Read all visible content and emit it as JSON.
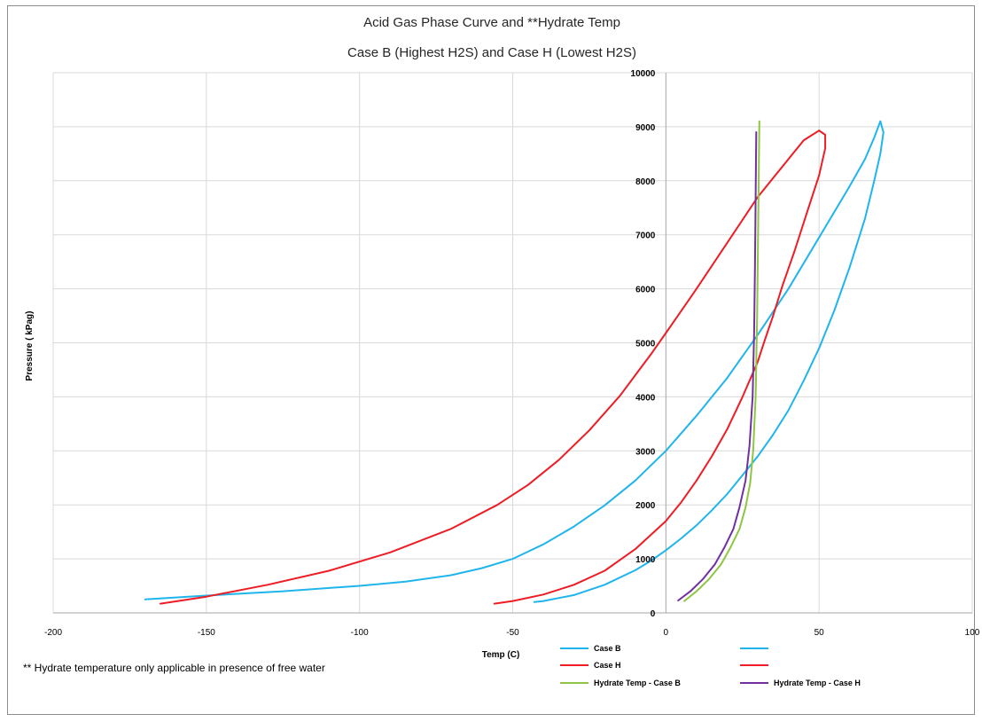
{
  "chart_data": {
    "type": "line",
    "title_line1": "Acid Gas Phase Curve and  **Hydrate Temp",
    "title_line2": "Case B (Highest H2S) and Case H (Lowest H2S)",
    "xlabel": "Temp  (C)",
    "ylabel": "Pressure ( kPag)",
    "xlim": [
      -200,
      100
    ],
    "ylim": [
      0,
      10000
    ],
    "x_ticks": [
      "-200",
      "-150",
      "-100",
      "-50",
      "0",
      "50",
      "100"
    ],
    "y_ticks": [
      "0",
      "1000",
      "2000",
      "3000",
      "4000",
      "5000",
      "6000",
      "7000",
      "8000",
      "9000",
      "10000"
    ],
    "grid": true,
    "legend_position": "bottom",
    "note": "** Hydrate temperature only applicable in presence of free water",
    "series": [
      {
        "name": "Case B",
        "color": "#1fb5ec",
        "x": [
          -170,
          -150,
          -125,
          -100,
          -85,
          -70,
          -60,
          -50,
          -40,
          -30,
          -20,
          -10,
          0,
          10,
          20,
          30,
          40,
          50,
          60,
          65,
          68,
          70
        ],
        "y": [
          250,
          320,
          400,
          500,
          580,
          700,
          830,
          1000,
          1270,
          1600,
          1990,
          2450,
          3000,
          3650,
          4350,
          5150,
          6000,
          6950,
          7900,
          8400,
          8800,
          9100
        ]
      },
      {
        "name": "",
        "color": "#1fb5ec",
        "x": [
          70,
          71,
          70,
          68,
          65,
          60,
          55,
          50,
          45,
          40,
          35,
          30,
          25,
          20,
          15,
          10,
          5,
          0,
          -5,
          -10,
          -20,
          -30,
          -40,
          -43
        ],
        "y": [
          9100,
          8900,
          8500,
          8000,
          7300,
          6400,
          5600,
          4900,
          4300,
          3750,
          3300,
          2900,
          2550,
          2200,
          1900,
          1620,
          1380,
          1160,
          960,
          790,
          520,
          330,
          220,
          200
        ]
      },
      {
        "name": "Case H",
        "color": "#ee1c24",
        "x": [
          -165,
          -150,
          -130,
          -110,
          -90,
          -70,
          -55,
          -45,
          -35,
          -25,
          -15,
          -10,
          -5,
          0,
          10,
          20,
          30,
          40,
          45,
          50
        ],
        "y": [
          170,
          300,
          520,
          780,
          1120,
          1560,
          2000,
          2370,
          2830,
          3380,
          4020,
          4400,
          4780,
          5180,
          6000,
          6850,
          7700,
          8400,
          8750,
          8930
        ]
      },
      {
        "name": "",
        "color": "#ee1c24",
        "x": [
          50,
          52,
          52,
          50,
          46,
          42,
          38,
          35,
          32,
          30,
          25,
          20,
          15,
          10,
          5,
          0,
          -10,
          -20,
          -30,
          -40,
          -50,
          -56
        ],
        "y": [
          8930,
          8850,
          8600,
          8100,
          7400,
          6700,
          6050,
          5500,
          5000,
          4650,
          4000,
          3400,
          2900,
          2450,
          2050,
          1700,
          1180,
          780,
          520,
          340,
          220,
          170
        ]
      },
      {
        "name": "Hydrate Temp - Case B",
        "color": "#8dc641",
        "x": [
          6,
          10,
          14,
          18,
          21,
          24,
          26,
          27.5,
          28.5,
          29.3,
          29.8,
          30.2,
          30.5
        ],
        "y": [
          220,
          400,
          620,
          900,
          1200,
          1550,
          1950,
          2400,
          3000,
          4000,
          5500,
          7500,
          9100
        ]
      },
      {
        "name": "Hydrate Temp - Case H",
        "color": "#7030a0",
        "x": [
          4,
          8,
          12,
          16,
          19,
          22,
          24,
          26,
          27.3,
          28.3,
          28.8,
          29.1,
          29.3,
          29.5
        ],
        "y": [
          230,
          400,
          620,
          900,
          1200,
          1550,
          1950,
          2450,
          3100,
          4000,
          5200,
          6500,
          7700,
          8900
        ]
      }
    ]
  }
}
